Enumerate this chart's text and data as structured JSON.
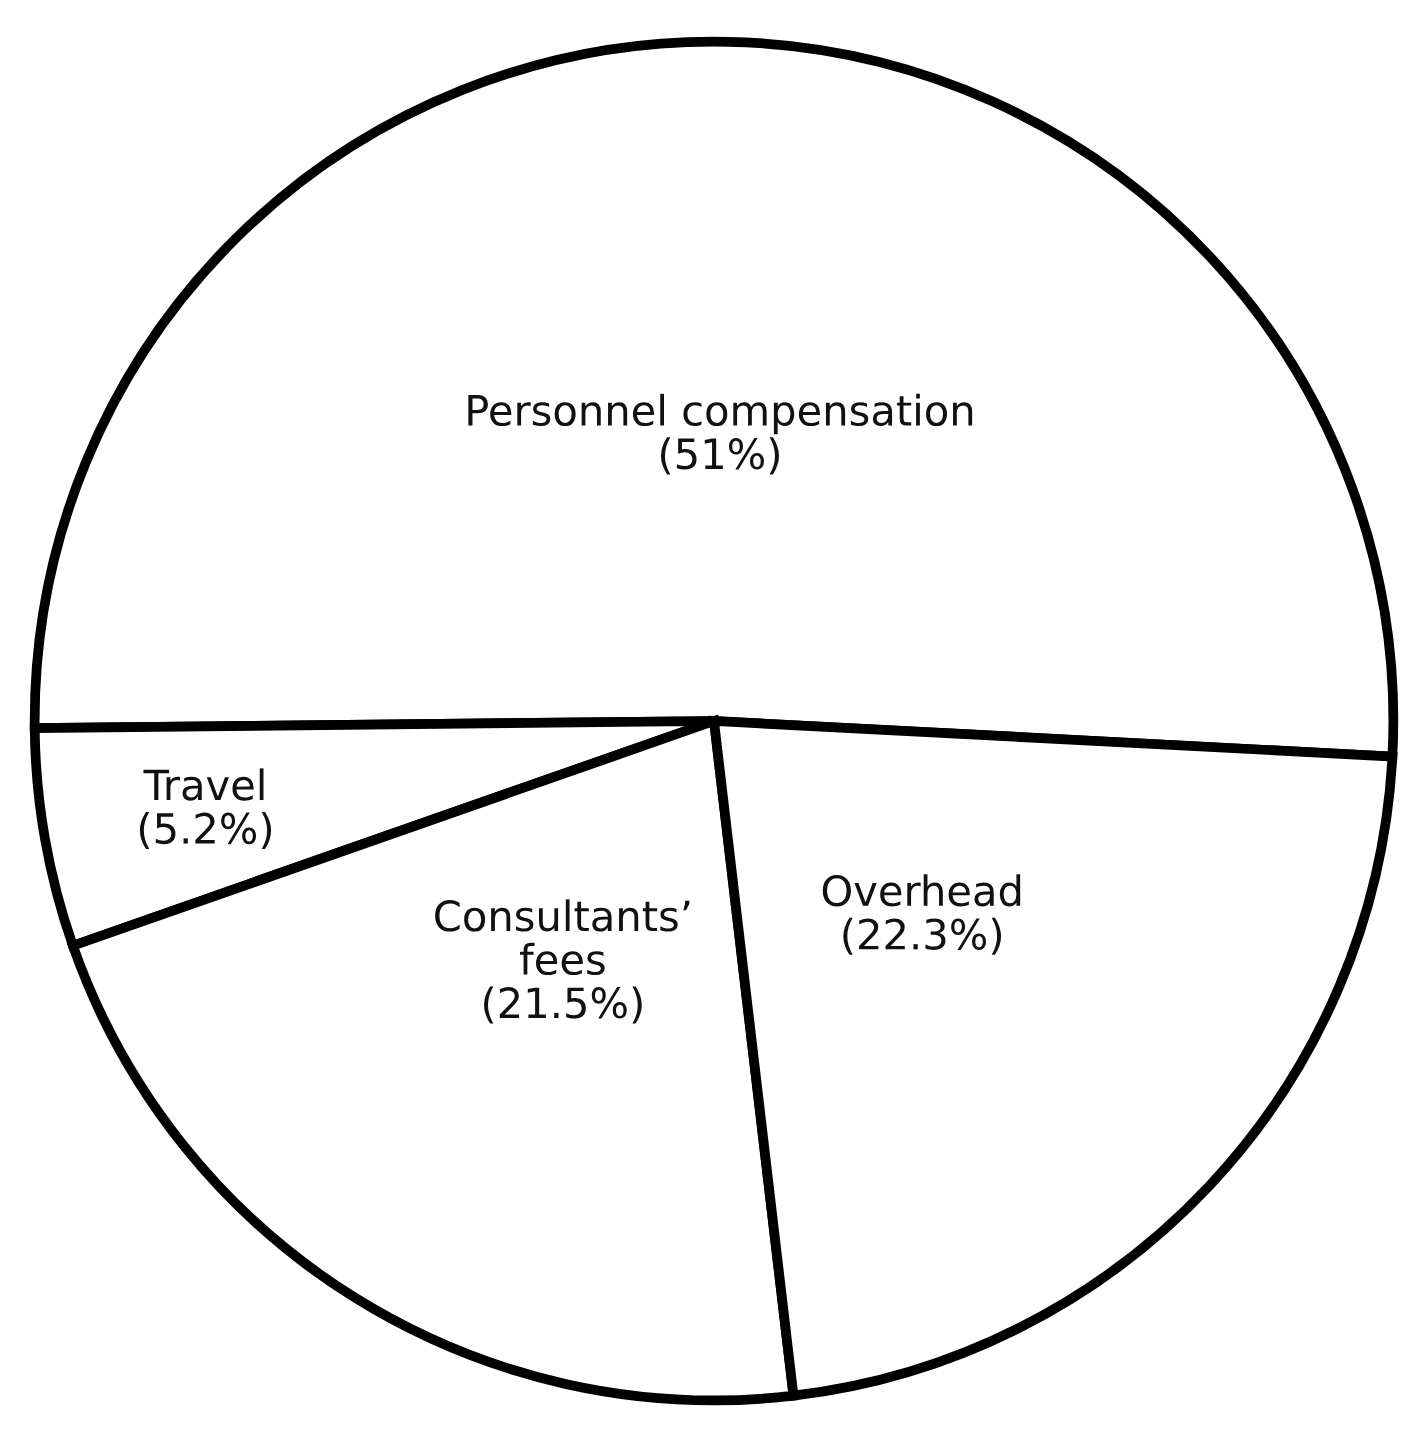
{
  "chart_data": {
    "type": "pie",
    "categories": [
      "Personnel compensation",
      "Travel",
      "Consultants’\nfees",
      "Overhead"
    ],
    "values": [
      51,
      5.2,
      21.5,
      22.3
    ],
    "value_labels": [
      "(51%)",
      "(5.2%)",
      "(21.5%)",
      "(22.3%)"
    ],
    "colors": [
      "#ffffff",
      "#ffffff",
      "#ffffff",
      "#ffffff"
    ],
    "legend": false
  }
}
